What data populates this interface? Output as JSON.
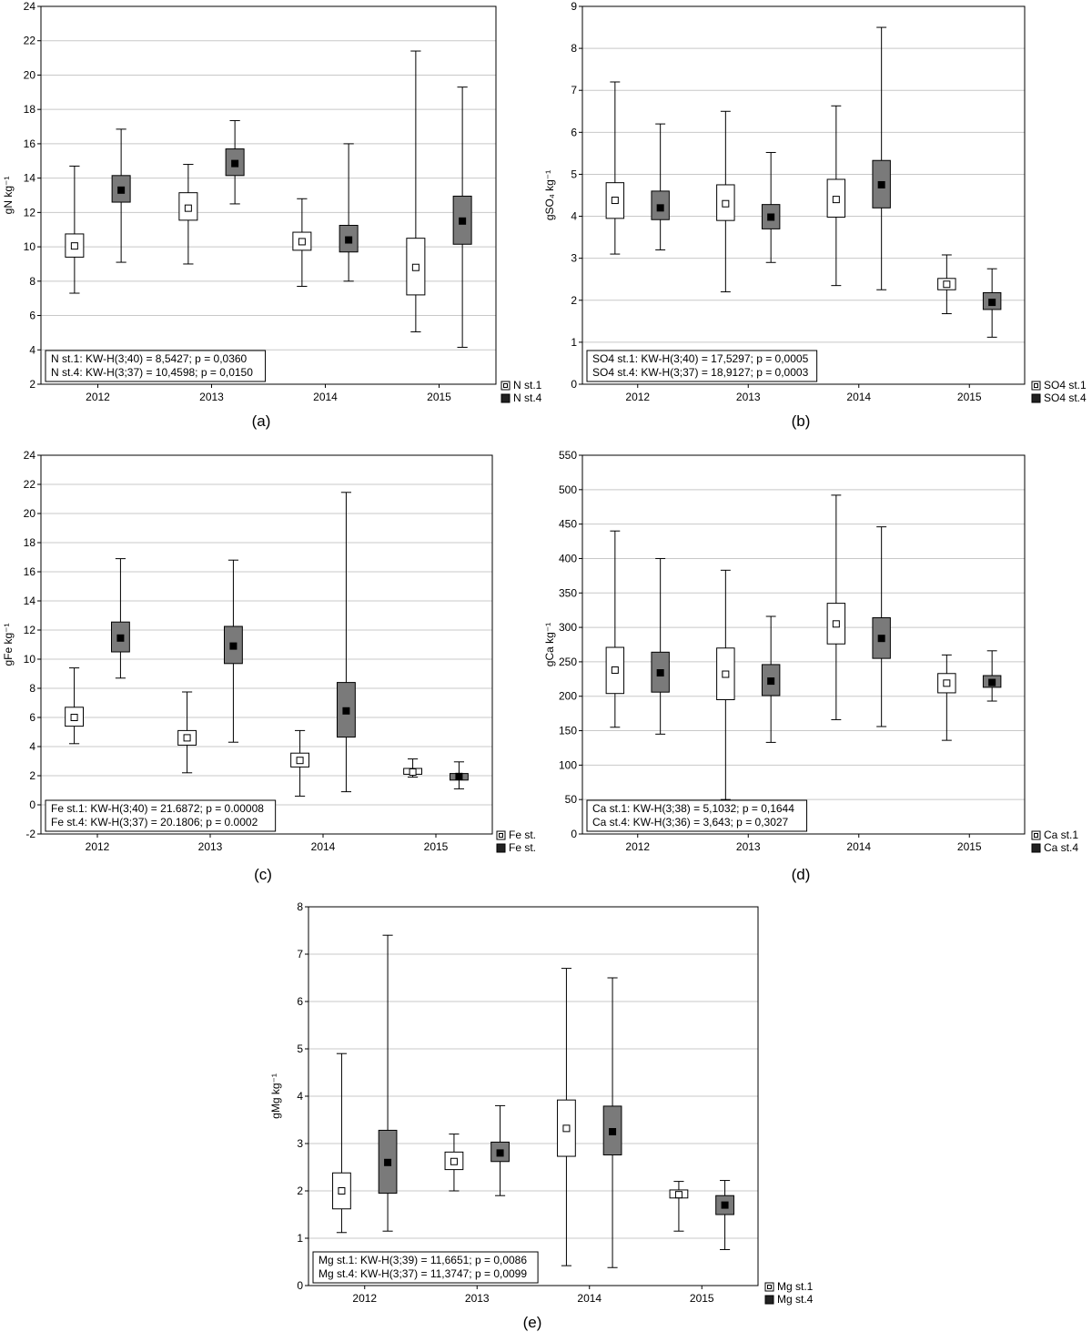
{
  "chart_data": [
    {
      "id": "a",
      "type": "box",
      "panel_label": "(a)",
      "ylabel": "gN kg⁻¹",
      "ylim": [
        2,
        24
      ],
      "yticks": [
        2,
        4,
        6,
        8,
        10,
        12,
        14,
        16,
        18,
        20,
        22,
        24
      ],
      "categories": [
        "2012",
        "2013",
        "2014",
        "2015"
      ],
      "series": [
        {
          "name": "N st.1",
          "style": "white",
          "boxes": [
            {
              "min": 7.3,
              "q1": 9.4,
              "median": 10.05,
              "q3": 10.75,
              "max": 14.7
            },
            {
              "min": 9.0,
              "q1": 11.55,
              "median": 12.25,
              "q3": 13.15,
              "max": 14.8
            },
            {
              "min": 7.7,
              "q1": 9.8,
              "median": 10.3,
              "q3": 10.85,
              "max": 12.8
            },
            {
              "min": 5.05,
              "q1": 7.2,
              "median": 8.8,
              "q3": 10.5,
              "max": 21.4
            }
          ]
        },
        {
          "name": "N st.4",
          "style": "gray",
          "boxes": [
            {
              "min": 9.1,
              "q1": 12.6,
              "median": 13.3,
              "q3": 14.15,
              "max": 16.85
            },
            {
              "min": 12.5,
              "q1": 14.15,
              "median": 14.85,
              "q3": 15.7,
              "max": 17.35
            },
            {
              "min": 8.0,
              "q1": 9.7,
              "median": 10.4,
              "q3": 11.25,
              "max": 16.0
            },
            {
              "min": 4.15,
              "q1": 10.15,
              "median": 11.5,
              "q3": 12.95,
              "max": 19.3
            }
          ]
        }
      ],
      "stats": [
        "N st.1:  KW-H(3;40) = 8,5427; p = 0,0360",
        "N st.4:  KW-H(3;37) = 10,4598; p = 0,0150"
      ]
    },
    {
      "id": "b",
      "type": "box",
      "panel_label": "(b)",
      "ylabel": "gSO₄ kg⁻¹",
      "ylim": [
        0,
        9
      ],
      "yticks": [
        0,
        1,
        2,
        3,
        4,
        5,
        6,
        7,
        8,
        9
      ],
      "categories": [
        "2012",
        "2013",
        "2014",
        "2015"
      ],
      "series": [
        {
          "name": "SO4 st.1",
          "style": "white",
          "boxes": [
            {
              "min": 3.1,
              "q1": 3.95,
              "median": 4.38,
              "q3": 4.8,
              "max": 7.2
            },
            {
              "min": 2.2,
              "q1": 3.9,
              "median": 4.3,
              "q3": 4.75,
              "max": 6.5
            },
            {
              "min": 2.35,
              "q1": 3.98,
              "median": 4.4,
              "q3": 4.88,
              "max": 6.63
            },
            {
              "min": 1.68,
              "q1": 2.25,
              "median": 2.38,
              "q3": 2.52,
              "max": 3.08
            }
          ]
        },
        {
          "name": "SO4 st.4",
          "style": "gray",
          "boxes": [
            {
              "min": 3.2,
              "q1": 3.92,
              "median": 4.2,
              "q3": 4.6,
              "max": 6.2
            },
            {
              "min": 2.9,
              "q1": 3.7,
              "median": 3.98,
              "q3": 4.28,
              "max": 5.52
            },
            {
              "min": 2.25,
              "q1": 4.2,
              "median": 4.75,
              "q3": 5.33,
              "max": 8.5
            },
            {
              "min": 1.12,
              "q1": 1.78,
              "median": 1.95,
              "q3": 2.18,
              "max": 2.75
            }
          ]
        }
      ],
      "stats": [
        "SO4 st.1:  KW-H(3;40) = 17,5297; p = 0,0005",
        "SO4 st.4:  KW-H(3;37) = 18,9127; p = 0,0003"
      ]
    },
    {
      "id": "c",
      "type": "box",
      "panel_label": "(c)",
      "ylabel": "gFe kg⁻¹",
      "ylim": [
        -2,
        24
      ],
      "yticks": [
        -2,
        0,
        2,
        4,
        6,
        8,
        10,
        12,
        14,
        16,
        18,
        20,
        22,
        24
      ],
      "categories": [
        "2012",
        "2013",
        "2014",
        "2015"
      ],
      "series": [
        {
          "name": "Fe st.",
          "style": "white",
          "boxes": [
            {
              "min": 4.2,
              "q1": 5.4,
              "median": 6.0,
              "q3": 6.7,
              "max": 9.4
            },
            {
              "min": 2.2,
              "q1": 4.1,
              "median": 4.6,
              "q3": 5.1,
              "max": 7.75
            },
            {
              "min": 0.6,
              "q1": 2.6,
              "median": 3.05,
              "q3": 3.55,
              "max": 5.1
            },
            {
              "min": 1.9,
              "q1": 2.1,
              "median": 2.25,
              "q3": 2.5,
              "max": 3.15
            }
          ]
        },
        {
          "name": "Fe st.",
          "style": "gray",
          "boxes": [
            {
              "min": 8.7,
              "q1": 10.5,
              "median": 11.45,
              "q3": 12.55,
              "max": 16.9
            },
            {
              "min": 4.3,
              "q1": 9.7,
              "median": 10.9,
              "q3": 12.25,
              "max": 16.8
            },
            {
              "min": 0.9,
              "q1": 4.65,
              "median": 6.45,
              "q3": 8.4,
              "max": 21.45
            },
            {
              "min": 1.1,
              "q1": 1.7,
              "median": 1.95,
              "q3": 2.15,
              "max": 2.95
            }
          ]
        }
      ],
      "stats": [
        "Fe st.1:  KW-H(3;40) = 21.6872; p = 0.00008",
        "Fe st.4:  KW-H(3;37) = 20.1806; p = 0.0002"
      ]
    },
    {
      "id": "d",
      "type": "box",
      "panel_label": "(d)",
      "ylabel": "gCa kg⁻¹",
      "ylim": [
        0,
        550
      ],
      "yticks": [
        0,
        50,
        100,
        150,
        200,
        250,
        300,
        350,
        400,
        450,
        500,
        550
      ],
      "categories": [
        "2012",
        "2013",
        "2014",
        "2015"
      ],
      "series": [
        {
          "name": "Ca st.1",
          "style": "white",
          "boxes": [
            {
              "min": 155,
              "q1": 204,
              "median": 238,
              "q3": 271,
              "max": 440
            },
            {
              "min": 50,
              "q1": 195,
              "median": 232,
              "q3": 270,
              "max": 383
            },
            {
              "min": 166,
              "q1": 276,
              "median": 305,
              "q3": 335,
              "max": 492
            },
            {
              "min": 136,
              "q1": 205,
              "median": 219,
              "q3": 233,
              "max": 260
            }
          ]
        },
        {
          "name": "Ca st.4",
          "style": "gray",
          "boxes": [
            {
              "min": 145,
              "q1": 206,
              "median": 234,
              "q3": 264,
              "max": 400
            },
            {
              "min": 133,
              "q1": 201,
              "median": 222,
              "q3": 246,
              "max": 316
            },
            {
              "min": 156,
              "q1": 255,
              "median": 284,
              "q3": 314,
              "max": 446
            },
            {
              "min": 193,
              "q1": 213,
              "median": 220,
              "q3": 230,
              "max": 266
            }
          ]
        }
      ],
      "stats": [
        "Ca st.1:  KW-H(3;38) = 5,1032; p = 0,1644",
        "Ca st.4:  KW-H(3;36) = 3,643; p = 0,3027"
      ]
    },
    {
      "id": "e",
      "type": "box",
      "panel_label": "(e)",
      "ylabel": "gMg kg⁻¹",
      "ylim": [
        0,
        8
      ],
      "yticks": [
        0,
        1,
        2,
        3,
        4,
        5,
        6,
        7,
        8
      ],
      "categories": [
        "2012",
        "2013",
        "2014",
        "2015"
      ],
      "series": [
        {
          "name": "Mg st.1",
          "style": "white",
          "boxes": [
            {
              "min": 1.12,
              "q1": 1.62,
              "median": 2.0,
              "q3": 2.38,
              "max": 4.9
            },
            {
              "min": 2.0,
              "q1": 2.45,
              "median": 2.62,
              "q3": 2.82,
              "max": 3.2
            },
            {
              "min": 0.42,
              "q1": 2.73,
              "median": 3.32,
              "q3": 3.92,
              "max": 6.7
            },
            {
              "min": 1.15,
              "q1": 1.85,
              "median": 1.92,
              "q3": 2.02,
              "max": 2.2
            }
          ]
        },
        {
          "name": "Mg st.4",
          "style": "gray",
          "boxes": [
            {
              "min": 1.15,
              "q1": 1.95,
              "median": 2.6,
              "q3": 3.28,
              "max": 7.4
            },
            {
              "min": 1.9,
              "q1": 2.62,
              "median": 2.8,
              "q3": 3.03,
              "max": 3.8
            },
            {
              "min": 0.38,
              "q1": 2.76,
              "median": 3.25,
              "q3": 3.79,
              "max": 6.5
            },
            {
              "min": 0.76,
              "q1": 1.5,
              "median": 1.7,
              "q3": 1.9,
              "max": 2.22
            }
          ]
        }
      ],
      "stats": [
        "Mg st.1:  KW-H(3;39) = 11,6651; p = 0,0086",
        "Mg st.4:  KW-H(3;37) = 11,3747; p = 0,0099"
      ]
    }
  ],
  "colors": {
    "white_box": "#ffffff",
    "gray_box": "#7a7a7a",
    "gridline": "#c8c8c8",
    "axis": "#000000",
    "white_marker": "#ffffff",
    "gray_marker": "#000000"
  }
}
